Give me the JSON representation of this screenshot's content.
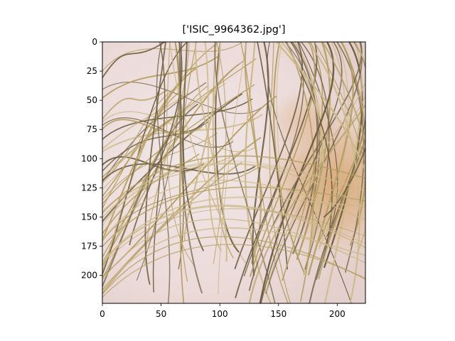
{
  "title": "['ISIC_9964362.jpg']",
  "image": {
    "subject": "dermoscopy-skin-with-hair",
    "colors": {
      "skin_light": "#eee2e2",
      "skin_pink": "#e7d1cf",
      "lesion_orange": "#d9a167",
      "hair_dark": "#6e5f43",
      "hair_blond": "#b59e64",
      "hair_light": "#cdb98b"
    }
  },
  "axes": {
    "x_ticks": [
      "0",
      "50",
      "100",
      "150",
      "200"
    ],
    "y_ticks": [
      "0",
      "25",
      "50",
      "75",
      "100",
      "125",
      "150",
      "175",
      "200"
    ],
    "xlim": [
      0,
      224
    ],
    "ylim": [
      224,
      0
    ]
  }
}
